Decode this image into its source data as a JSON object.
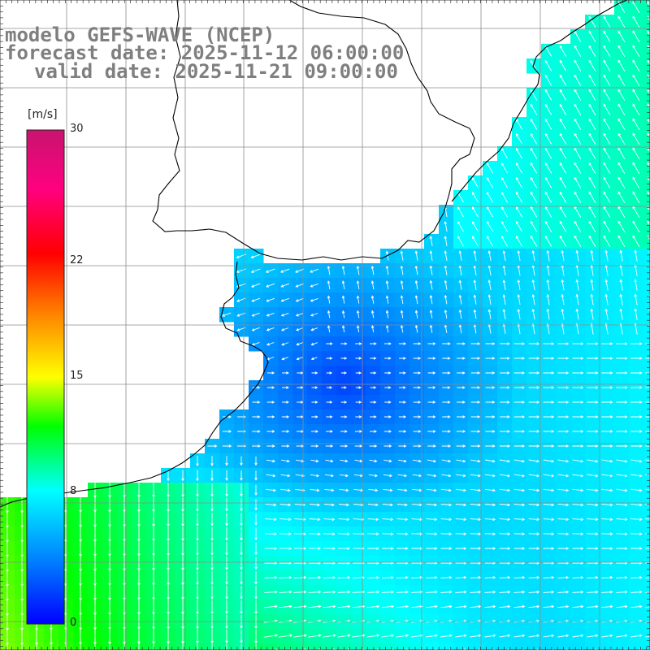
{
  "title": {
    "line1": "modelo GEFS-WAVE (NCEP)",
    "line2": "forecast date: 2025-11-12 06:00:00",
    "line3": "valid date: 2025-11-21 09:00:00"
  },
  "colorbar": {
    "unit": "[m/s]",
    "min": 0,
    "max": 30,
    "tick_labels": [
      "30",
      "22",
      "15",
      "8",
      "0"
    ],
    "tick_values": [
      30,
      22,
      15,
      8,
      0
    ],
    "colors": [
      "#0000ff",
      "#0096ff",
      "#00ffff",
      "#00ff00",
      "#80ff00",
      "#ffff00",
      "#ff8000",
      "#ff0000",
      "#ff0080",
      "#c81e78"
    ]
  },
  "map": {
    "field": "wind speed with direction arrows",
    "land_color": "#ffffff",
    "grid_color": "#8c8c8c",
    "coast_color": "#000000",
    "arrow_color": "#ffffff"
  }
}
